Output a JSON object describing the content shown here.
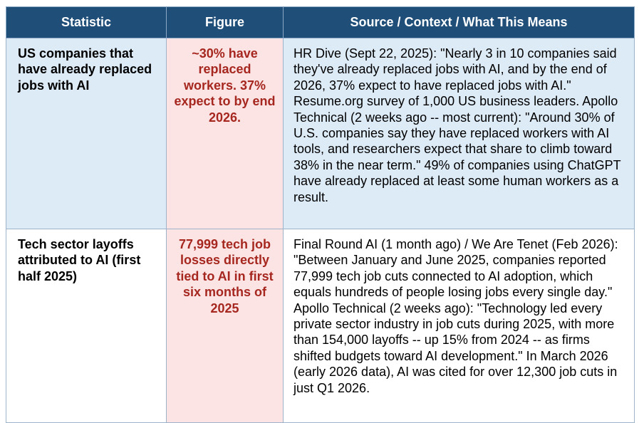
{
  "table": {
    "headers": [
      "Statistic",
      "Figure",
      "Source / Context / What This Means"
    ],
    "rows": [
      {
        "statistic": "US companies that have already replaced jobs with AI",
        "figure": "~30% have replaced workers. 37% expect to by end 2026.",
        "context": "HR Dive (Sept 22, 2025): \"Nearly 3 in 10 companies said they've already replaced jobs with AI, and by the end of 2026, 37% expect to have replaced jobs with AI.\" Resume.org survey of 1,000 US business leaders. Apollo Technical (2 weeks ago -- most current): \"Around 30% of U.S. companies say they have replaced workers with AI tools, and researchers expect that share to climb toward 38% in the near term.\" 49% of companies using ChatGPT have already replaced at least some human workers as a result."
      },
      {
        "statistic": "Tech sector layoffs attributed to AI (first half 2025)",
        "figure": "77,999 tech job losses directly tied to AI in first six months of 2025",
        "context": "Final Round AI (1 month ago) / We Are Tenet (Feb 2026): \"Between January and June 2025, companies reported 77,999 tech job cuts connected to AI adoption, which equals hundreds of people losing jobs every single day.\" Apollo Technical (2 weeks ago): \"Technology led every private sector industry in job cuts during 2025, with more than 154,000 layoffs -- up 15% from 2024 -- as firms shifted budgets toward AI development.\" In March 2026 (early 2026 data), AI was cited for over 12,300 job cuts in just Q1 2026."
      }
    ]
  },
  "colors": {
    "header_bg": "#1f4e79",
    "header_text": "#ffffff",
    "row1_bg": "#ddebf7",
    "figure_bg": "#fce4e4",
    "figure_text": "#a6271f",
    "border": "#9db3c9"
  }
}
